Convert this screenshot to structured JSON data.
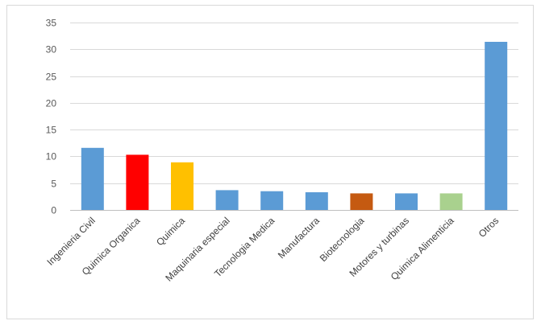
{
  "chart_data": {
    "type": "bar",
    "title": "",
    "xlabel": "",
    "ylabel": "",
    "ylim": [
      0,
      35
    ],
    "yticks": [
      0,
      5,
      10,
      15,
      20,
      25,
      30,
      35
    ],
    "grid": true,
    "legend": "none",
    "categories": [
      "Ingenieria Civil",
      "Quimica Organica",
      "Quimica",
      "Maquinaria especial",
      "Tecnologia Medica",
      "Manufactura",
      "Biotecnologia",
      "Motores y turbinas",
      "Quimica Alimenticia",
      "Otros"
    ],
    "values": [
      11.6,
      10.3,
      8.9,
      3.7,
      3.5,
      3.3,
      3.1,
      3.1,
      3.1,
      31.4
    ],
    "colors": [
      "#5b9bd5",
      "#ff0000",
      "#ffc000",
      "#5b9bd5",
      "#5b9bd5",
      "#5b9bd5",
      "#c55a11",
      "#5b9bd5",
      "#a9d18e",
      "#5b9bd5"
    ]
  }
}
